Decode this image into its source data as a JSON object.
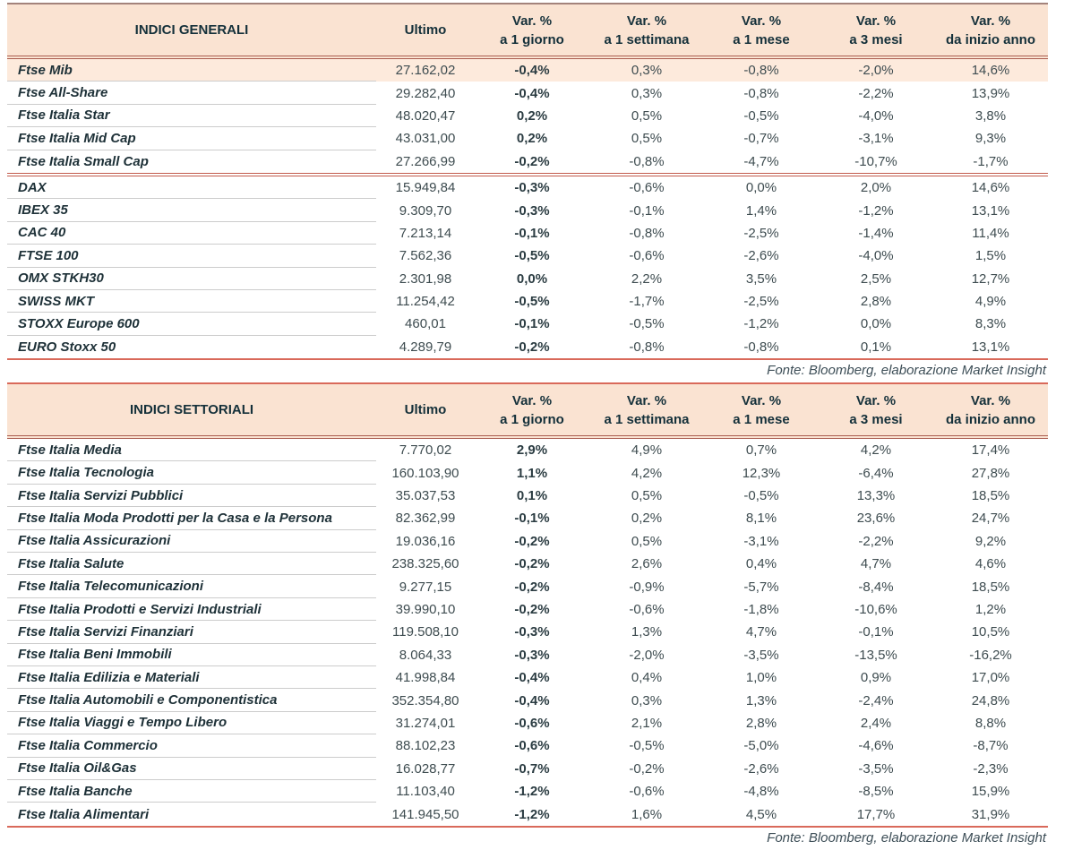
{
  "source_note": "Fonte: Bloomberg, elaborazione Market Insight",
  "colors": {
    "header_bg": "#fae3d2",
    "highlight_row_bg": "#fdeadc",
    "salmon_rule": "#d9695a",
    "double_rule": "#aa5d50",
    "top_rule": "#a3837b",
    "name_text": "#1e3138",
    "number_text": "#3e4c50",
    "separator_gray": "#cccccc"
  },
  "columns": {
    "ultimo": "Ultimo",
    "vars": [
      {
        "l1": "Var. %",
        "l2": "a 1 giorno"
      },
      {
        "l1": "Var. %",
        "l2": "a 1 settimana"
      },
      {
        "l1": "Var. %",
        "l2": "a 1 mese"
      },
      {
        "l1": "Var. %",
        "l2": "a 3 mesi"
      },
      {
        "l1": "Var. %",
        "l2": "da inizio anno"
      }
    ]
  },
  "tables": [
    {
      "title": "INDICI GENERALI",
      "rows": [
        {
          "name": "Ftse Mib",
          "ultimo": "27.162,02",
          "d1": "-0,4%",
          "w1": "0,3%",
          "m1": "-0,8%",
          "m3": "-2,0%",
          "ytd": "14,6%",
          "highlight": true
        },
        {
          "name": "Ftse All-Share",
          "ultimo": "29.282,40",
          "d1": "-0,4%",
          "w1": "0,3%",
          "m1": "-0,8%",
          "m3": "-2,2%",
          "ytd": "13,9%"
        },
        {
          "name": "Ftse Italia Star",
          "ultimo": "48.020,47",
          "d1": "0,2%",
          "w1": "0,5%",
          "m1": "-0,5%",
          "m3": "-4,0%",
          "ytd": "3,8%"
        },
        {
          "name": "Ftse Italia Mid Cap",
          "ultimo": "43.031,00",
          "d1": "0,2%",
          "w1": "0,5%",
          "m1": "-0,7%",
          "m3": "-3,1%",
          "ytd": "9,3%"
        },
        {
          "name": "Ftse Italia Small Cap",
          "ultimo": "27.266,99",
          "d1": "-0,2%",
          "w1": "-0,8%",
          "m1": "-4,7%",
          "m3": "-10,7%",
          "ytd": "-1,7%",
          "section_end": true,
          "divider_after": true
        },
        {
          "name": "DAX",
          "ultimo": "15.949,84",
          "d1": "-0,3%",
          "w1": "-0,6%",
          "m1": "0,0%",
          "m3": "2,0%",
          "ytd": "14,6%"
        },
        {
          "name": "IBEX 35",
          "ultimo": "9.309,70",
          "d1": "-0,3%",
          "w1": "-0,1%",
          "m1": "1,4%",
          "m3": "-1,2%",
          "ytd": "13,1%"
        },
        {
          "name": "CAC 40",
          "ultimo": "7.213,14",
          "d1": "-0,1%",
          "w1": "-0,8%",
          "m1": "-2,5%",
          "m3": "-1,4%",
          "ytd": "11,4%"
        },
        {
          "name": "FTSE 100",
          "ultimo": "7.562,36",
          "d1": "-0,5%",
          "w1": "-0,6%",
          "m1": "-2,6%",
          "m3": "-4,0%",
          "ytd": "1,5%"
        },
        {
          "name": "OMX STKH30",
          "ultimo": "2.301,98",
          "d1": "0,0%",
          "w1": "2,2%",
          "m1": "3,5%",
          "m3": "2,5%",
          "ytd": "12,7%"
        },
        {
          "name": "SWISS MKT",
          "ultimo": "11.254,42",
          "d1": "-0,5%",
          "w1": "-1,7%",
          "m1": "-2,5%",
          "m3": "2,8%",
          "ytd": "4,9%"
        },
        {
          "name": "STOXX Europe 600",
          "ultimo": "460,01",
          "d1": "-0,1%",
          "w1": "-0,5%",
          "m1": "-1,2%",
          "m3": "0,0%",
          "ytd": "8,3%"
        },
        {
          "name": "EURO Stoxx 50",
          "ultimo": "4.289,79",
          "d1": "-0,2%",
          "w1": "-0,8%",
          "m1": "-0,8%",
          "m3": "0,1%",
          "ytd": "13,1%",
          "section_end": true
        }
      ]
    },
    {
      "title": "INDICI SETTORIALI",
      "rows": [
        {
          "name": "Ftse Italia Media",
          "ultimo": "7.770,02",
          "d1": "2,9%",
          "w1": "4,9%",
          "m1": "0,7%",
          "m3": "4,2%",
          "ytd": "17,4%"
        },
        {
          "name": "Ftse Italia Tecnologia",
          "ultimo": "160.103,90",
          "d1": "1,1%",
          "w1": "4,2%",
          "m1": "12,3%",
          "m3": "-6,4%",
          "ytd": "27,8%"
        },
        {
          "name": "Ftse Italia Servizi Pubblici",
          "ultimo": "35.037,53",
          "d1": "0,1%",
          "w1": "0,5%",
          "m1": "-0,5%",
          "m3": "13,3%",
          "ytd": "18,5%"
        },
        {
          "name": "Ftse Italia Moda Prodotti per la Casa e la Persona",
          "ultimo": "82.362,99",
          "d1": "-0,1%",
          "w1": "0,2%",
          "m1": "8,1%",
          "m3": "23,6%",
          "ytd": "24,7%"
        },
        {
          "name": "Ftse Italia Assicurazioni",
          "ultimo": "19.036,16",
          "d1": "-0,2%",
          "w1": "0,5%",
          "m1": "-3,1%",
          "m3": "-2,2%",
          "ytd": "9,2%"
        },
        {
          "name": "Ftse Italia Salute",
          "ultimo": "238.325,60",
          "d1": "-0,2%",
          "w1": "2,6%",
          "m1": "0,4%",
          "m3": "4,7%",
          "ytd": "4,6%"
        },
        {
          "name": "Ftse Italia Telecomunicazioni",
          "ultimo": "9.277,15",
          "d1": "-0,2%",
          "w1": "-0,9%",
          "m1": "-5,7%",
          "m3": "-8,4%",
          "ytd": "18,5%"
        },
        {
          "name": "Ftse Italia Prodotti e Servizi Industriali",
          "ultimo": "39.990,10",
          "d1": "-0,2%",
          "w1": "-0,6%",
          "m1": "-1,8%",
          "m3": "-10,6%",
          "ytd": "1,2%"
        },
        {
          "name": "Ftse Italia Servizi Finanziari",
          "ultimo": "119.508,10",
          "d1": "-0,3%",
          "w1": "1,3%",
          "m1": "4,7%",
          "m3": "-0,1%",
          "ytd": "10,5%"
        },
        {
          "name": "Ftse Italia Beni Immobili",
          "ultimo": "8.064,33",
          "d1": "-0,3%",
          "w1": "-2,0%",
          "m1": "-3,5%",
          "m3": "-13,5%",
          "ytd": "-16,2%"
        },
        {
          "name": "Ftse Italia Edilizia e Materiali",
          "ultimo": "41.998,84",
          "d1": "-0,4%",
          "w1": "0,4%",
          "m1": "1,0%",
          "m3": "0,9%",
          "ytd": "17,0%"
        },
        {
          "name": "Ftse Italia Automobili e Componentistica",
          "ultimo": "352.354,80",
          "d1": "-0,4%",
          "w1": "0,3%",
          "m1": "1,3%",
          "m3": "-2,4%",
          "ytd": "24,8%"
        },
        {
          "name": "Ftse Italia Viaggi e Tempo Libero",
          "ultimo": "31.274,01",
          "d1": "-0,6%",
          "w1": "2,1%",
          "m1": "2,8%",
          "m3": "2,4%",
          "ytd": "8,8%"
        },
        {
          "name": "Ftse Italia Commercio",
          "ultimo": "88.102,23",
          "d1": "-0,6%",
          "w1": "-0,5%",
          "m1": "-5,0%",
          "m3": "-4,6%",
          "ytd": "-8,7%"
        },
        {
          "name": "Ftse Italia Oil&Gas",
          "ultimo": "16.028,77",
          "d1": "-0,7%",
          "w1": "-0,2%",
          "m1": "-2,6%",
          "m3": "-3,5%",
          "ytd": "-2,3%"
        },
        {
          "name": "Ftse Italia Banche",
          "ultimo": "11.103,40",
          "d1": "-1,2%",
          "w1": "-0,6%",
          "m1": "-4,8%",
          "m3": "-8,5%",
          "ytd": "15,9%"
        },
        {
          "name": "Ftse Italia Alimentari",
          "ultimo": "141.945,50",
          "d1": "-1,2%",
          "w1": "1,6%",
          "m1": "4,5%",
          "m3": "17,7%",
          "ytd": "31,9%",
          "section_end": true
        }
      ]
    }
  ]
}
